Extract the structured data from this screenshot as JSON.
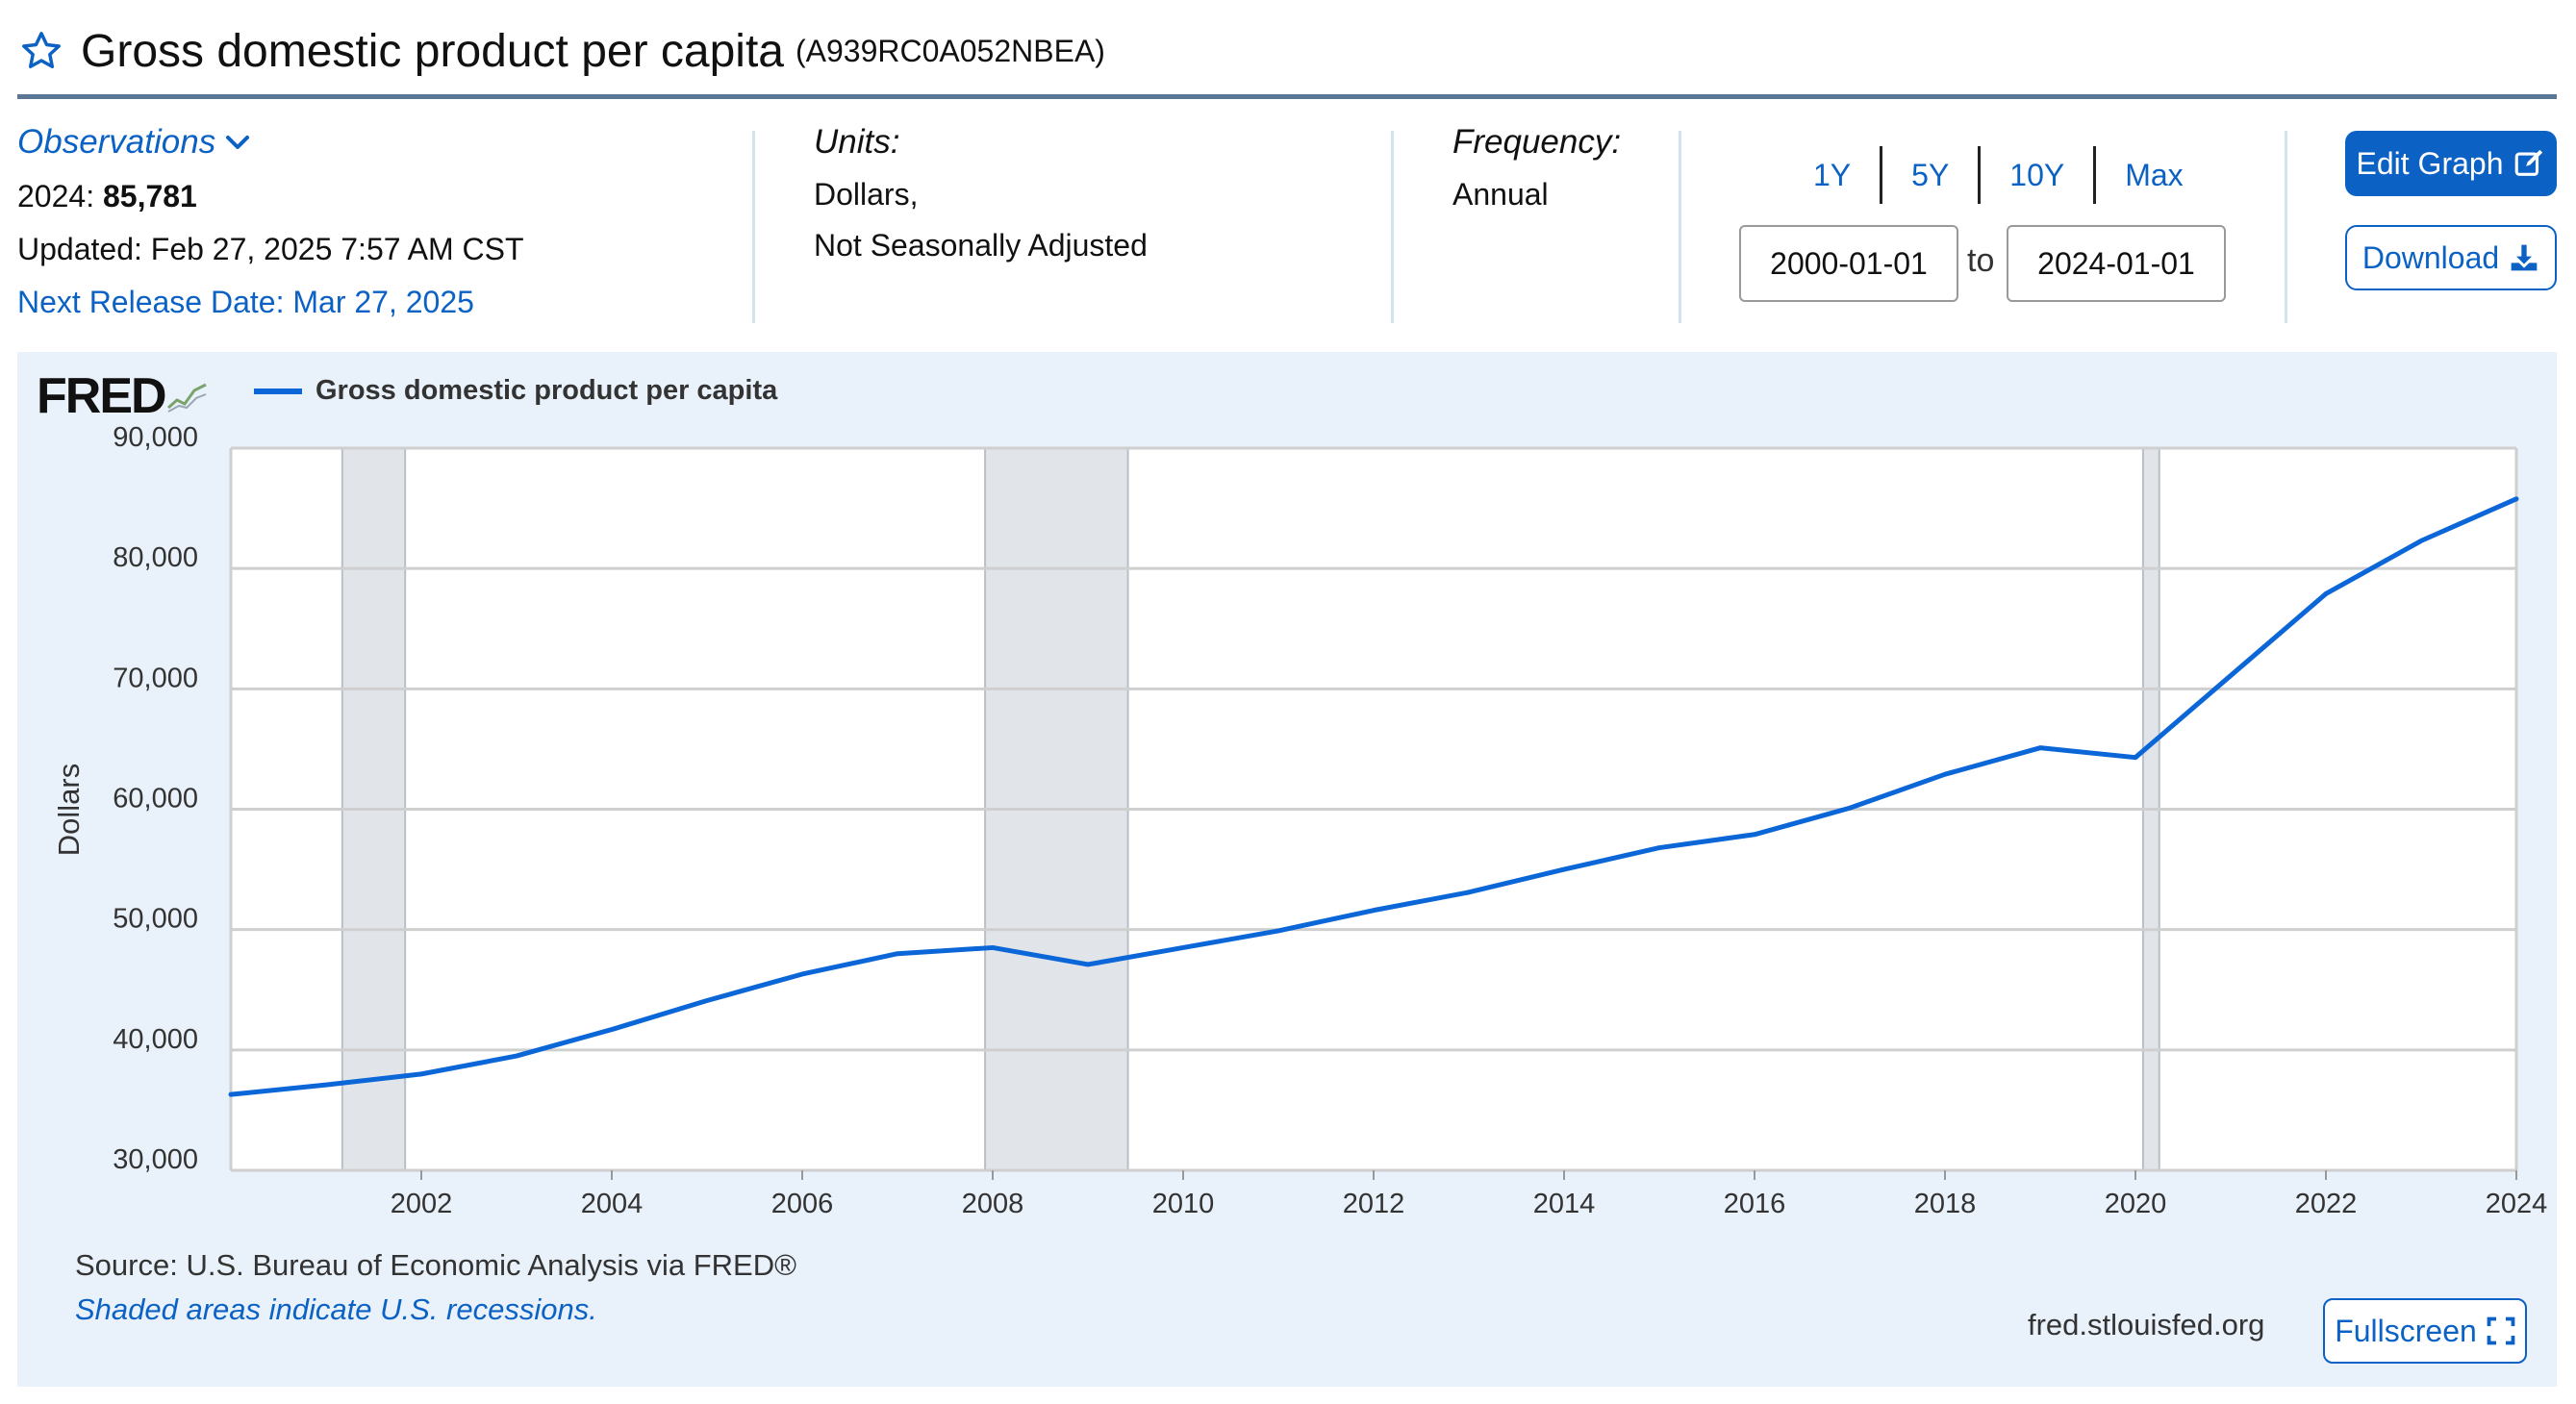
{
  "header": {
    "title": "Gross domestic product per capita",
    "series_id": "(A939RC0A052NBEA)",
    "star_icon": "star-outline-icon"
  },
  "observations": {
    "label": "Observations",
    "latest_period": "2024: ",
    "latest_value": "85,781",
    "updated": "Updated: Feb 27, 2025 7:57 AM CST",
    "next_release": "Next Release Date: Mar 27, 2025"
  },
  "units": {
    "label": "Units:",
    "line1": "Dollars,",
    "line2": "Not Seasonally Adjusted"
  },
  "frequency": {
    "label": "Frequency:",
    "value": "Annual"
  },
  "range": {
    "buttons": [
      "1Y",
      "5Y",
      "10Y",
      "Max"
    ],
    "start": "2000-01-01",
    "to_label": "to",
    "end": "2024-01-01"
  },
  "actions": {
    "edit_graph": "Edit Graph",
    "download": "Download",
    "fullscreen": "Fullscreen"
  },
  "chart_panel": {
    "logo": "FRED",
    "source": "Source: U.S. Bureau of Economic Analysis via FRED®",
    "recession_note": "Shaded areas indicate U.S. recessions.",
    "url": "fred.stlouisfed.org"
  },
  "colors": {
    "accent": "#0b62c4",
    "series": "#0b66d8",
    "panel_bg": "#e9f1fa",
    "recession": "#e1e5ea"
  },
  "chart_data": {
    "type": "line",
    "title": "",
    "ylabel": "Dollars",
    "xlabel": "",
    "series": [
      {
        "name": "Gross domestic product per capita",
        "x": [
          2000,
          2001,
          2002,
          2003,
          2004,
          2005,
          2006,
          2007,
          2008,
          2009,
          2010,
          2011,
          2012,
          2013,
          2014,
          2015,
          2016,
          2017,
          2018,
          2019,
          2020,
          2021,
          2022,
          2023,
          2024
        ],
        "values": [
          36300,
          37100,
          38000,
          39500,
          41700,
          44100,
          46300,
          48000,
          48500,
          47100,
          48500,
          49900,
          51600,
          53100,
          55000,
          56800,
          57900,
          60100,
          62900,
          65100,
          64300,
          71100,
          77900,
          82300,
          85781
        ]
      }
    ],
    "xlim": [
      2000,
      2024
    ],
    "ylim": [
      30000,
      90000
    ],
    "y_ticks": [
      30000,
      40000,
      50000,
      60000,
      70000,
      80000,
      90000
    ],
    "y_tick_labels": [
      "30,000",
      "40,000",
      "50,000",
      "60,000",
      "70,000",
      "80,000",
      "90,000"
    ],
    "x_ticks": [
      2002,
      2004,
      2006,
      2008,
      2010,
      2012,
      2014,
      2016,
      2018,
      2020,
      2022,
      2024
    ],
    "x_tick_labels": [
      "2002",
      "2004",
      "2006",
      "2008",
      "2010",
      "2012",
      "2014",
      "2016",
      "2018",
      "2020",
      "2022",
      "2024"
    ],
    "recessions": [
      [
        2001.17,
        2001.83
      ],
      [
        2007.92,
        2009.42
      ],
      [
        2020.08,
        2020.25
      ]
    ],
    "grid": true,
    "legend_position": "top-left"
  }
}
